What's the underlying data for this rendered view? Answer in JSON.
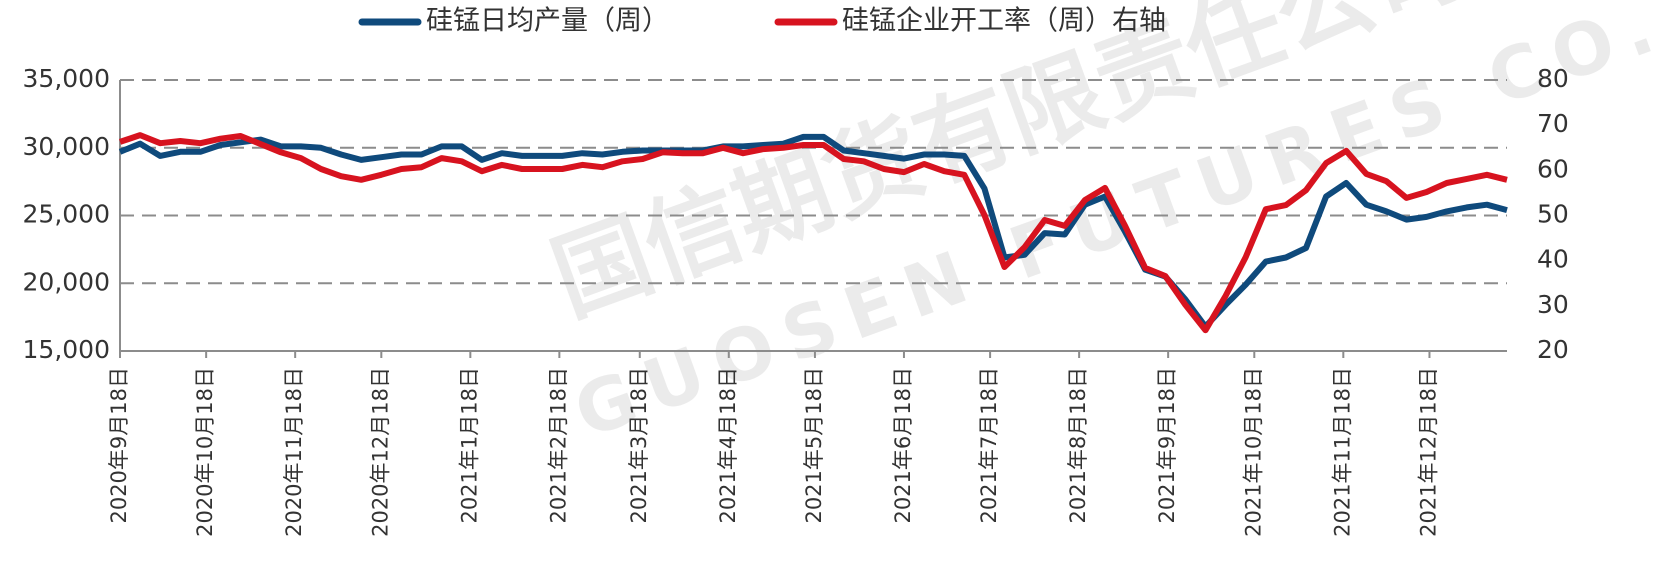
{
  "chart_data": {
    "type": "line",
    "legend": "top",
    "grid": true,
    "watermark": [
      "国信期货有限责任公司",
      "GUOSEN FUTURES CO.,LTD."
    ],
    "x": [
      "2020-09-18",
      "2020-09-25",
      "2020-10-02",
      "2020-10-09",
      "2020-10-16",
      "2020-10-23",
      "2020-10-30",
      "2020-11-06",
      "2020-11-13",
      "2020-11-20",
      "2020-11-27",
      "2020-12-04",
      "2020-12-11",
      "2020-12-18",
      "2020-12-25",
      "2021-01-01",
      "2021-01-08",
      "2021-01-15",
      "2021-01-22",
      "2021-01-29",
      "2021-02-05",
      "2021-02-12",
      "2021-02-19",
      "2021-02-26",
      "2021-03-05",
      "2021-03-12",
      "2021-03-19",
      "2021-03-26",
      "2021-04-02",
      "2021-04-09",
      "2021-04-16",
      "2021-04-23",
      "2021-04-30",
      "2021-05-07",
      "2021-05-14",
      "2021-05-21",
      "2021-05-28",
      "2021-06-04",
      "2021-06-11",
      "2021-06-18",
      "2021-06-25",
      "2021-07-02",
      "2021-07-09",
      "2021-07-16",
      "2021-07-23",
      "2021-07-30",
      "2021-08-06",
      "2021-08-13",
      "2021-08-20",
      "2021-08-27",
      "2021-09-03",
      "2021-09-10",
      "2021-09-17",
      "2021-09-24",
      "2021-10-01",
      "2021-10-08",
      "2021-10-15",
      "2021-10-22",
      "2021-10-29",
      "2021-11-05",
      "2021-11-12",
      "2021-11-19",
      "2021-11-26",
      "2021-12-03",
      "2021-12-10",
      "2021-12-17",
      "2021-12-24",
      "2021-12-31",
      "2022-01-07",
      "2022-01-14"
    ],
    "xlim": [
      "2020-09-18",
      "2022-01-14"
    ],
    "xticks": [
      {
        "value": "2020-09-18",
        "label": "2020年9月18日"
      },
      {
        "value": "2020-10-18",
        "label": "2020年10月18日"
      },
      {
        "value": "2020-11-18",
        "label": "2020年11月18日"
      },
      {
        "value": "2020-12-18",
        "label": "2020年12月18日"
      },
      {
        "value": "2021-01-18",
        "label": "2021年1月18日"
      },
      {
        "value": "2021-02-18",
        "label": "2021年2月18日"
      },
      {
        "value": "2021-03-18",
        "label": "2021年3月18日"
      },
      {
        "value": "2021-04-18",
        "label": "2021年4月18日"
      },
      {
        "value": "2021-05-18",
        "label": "2021年5月18日"
      },
      {
        "value": "2021-06-18",
        "label": "2021年6月18日"
      },
      {
        "value": "2021-07-18",
        "label": "2021年7月18日"
      },
      {
        "value": "2021-08-18",
        "label": "2021年8月18日"
      },
      {
        "value": "2021-09-18",
        "label": "2021年9月18日"
      },
      {
        "value": "2021-10-18",
        "label": "2021年10月18日"
      },
      {
        "value": "2021-11-18",
        "label": "2021年11月18日"
      },
      {
        "value": "2021-12-18",
        "label": "2021年12月18日"
      }
    ],
    "ylim": [
      15000,
      35000
    ],
    "yticks": [
      {
        "value": 15000,
        "label": "15,000"
      },
      {
        "value": 20000,
        "label": "20,000"
      },
      {
        "value": 25000,
        "label": "25,000"
      },
      {
        "value": 30000,
        "label": "30,000"
      },
      {
        "value": 35000,
        "label": "35,000"
      }
    ],
    "y2lim": [
      20,
      80
    ],
    "y2ticks": [
      20,
      30,
      40,
      50,
      60,
      70,
      80
    ],
    "series": [
      {
        "name": "硅锰日均产量（周）",
        "color": "#0f4a7c",
        "values": [
          29700,
          30300,
          29400,
          29700,
          29700,
          30200,
          30400,
          30600,
          30100,
          30100,
          30000,
          29500,
          29100,
          29300,
          29500,
          29500,
          30100,
          30100,
          29100,
          29600,
          29400,
          29400,
          29400,
          29600,
          29500,
          29700,
          29800,
          29800,
          29800,
          29800,
          30100,
          30100,
          30200,
          30300,
          30800,
          30800,
          29800,
          29600,
          29400,
          29200,
          29500,
          29500,
          29400,
          27000,
          21900,
          22100,
          23700,
          23600,
          25800,
          26400,
          23800,
          21000,
          20500,
          18800,
          16800,
          18400,
          19900,
          21600,
          21900,
          22600,
          26400,
          27400,
          25800,
          25300,
          24700,
          24900,
          25300,
          25600,
          25800,
          25400
        ]
      },
      {
        "name": "硅锰企业开工率（周）右轴",
        "color": "#d7131f",
        "axis": "y2",
        "values": [
          66.3,
          67.8,
          66,
          66.5,
          66,
          67,
          67.6,
          65.8,
          64,
          62.7,
          60.3,
          58.7,
          57.9,
          59,
          60.3,
          60.7,
          62.7,
          62,
          59.8,
          61.2,
          60.3,
          60.3,
          60.3,
          61.2,
          60.7,
          62,
          62.5,
          64,
          63.8,
          63.8,
          65,
          63.8,
          64.7,
          65,
          65.6,
          65.6,
          62.5,
          62,
          60.3,
          59.6,
          61.4,
          59.8,
          59,
          50.1,
          38.6,
          43,
          49,
          47.7,
          53.4,
          56.1,
          47.7,
          38.4,
          36.6,
          30.2,
          24.6,
          32.2,
          40.8,
          51.4,
          52.3,
          55.6,
          61.6,
          64.3,
          59.2,
          57.6,
          53.9,
          55.2,
          57.2,
          58.1,
          59,
          57.9
        ]
      }
    ]
  }
}
